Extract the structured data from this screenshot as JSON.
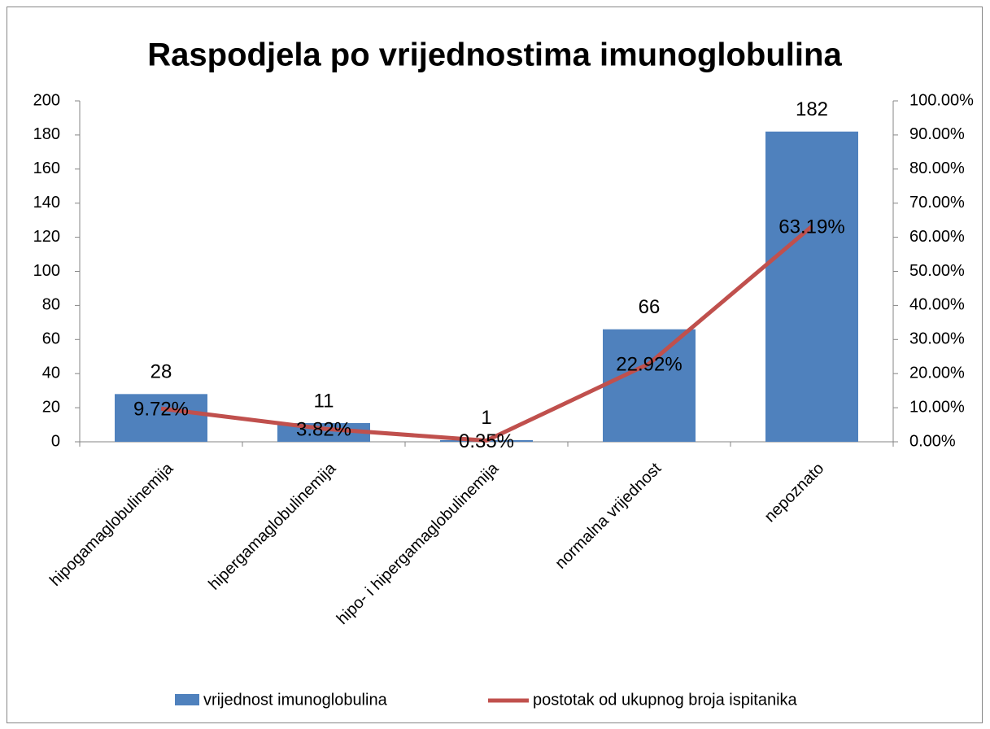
{
  "chart_data": {
    "type": "combo",
    "title": "Raspodjela po vrijednostima imunoglobulina",
    "categories": [
      "hipogamaglobulinemija",
      "hipergamaglobulinemija",
      "hipo- i hipergamaglobulinemija",
      "normalna vrijednost",
      "nepoznato"
    ],
    "series": [
      {
        "name": "vrijednost imunoglobulina",
        "type": "bar",
        "color": "#4f81bd",
        "values": [
          28,
          11,
          1,
          66,
          182
        ]
      },
      {
        "name": "postotak od ukupnog broja ispitanika",
        "type": "line",
        "axis": "y2",
        "color": "#c0504d",
        "values": [
          9.72,
          3.82,
          0.35,
          22.92,
          63.19
        ],
        "value_labels": [
          "9.72%",
          "3.82%",
          "0.35%",
          "22.92%",
          "63.19%"
        ]
      }
    ],
    "ylim": [
      0,
      200
    ],
    "yticks": [
      0,
      20,
      40,
      60,
      80,
      100,
      120,
      140,
      160,
      180,
      200
    ],
    "y2lim": [
      0,
      100
    ],
    "y2ticks": [
      {
        "value": 0,
        "label": "0.00%"
      },
      {
        "value": 10,
        "label": "10.00%"
      },
      {
        "value": 20,
        "label": "20.00%"
      },
      {
        "value": 30,
        "label": "30.00%"
      },
      {
        "value": 40,
        "label": "40.00%"
      },
      {
        "value": 50,
        "label": "50.00%"
      },
      {
        "value": 60,
        "label": "60.00%"
      },
      {
        "value": 70,
        "label": "70.00%"
      },
      {
        "value": 80,
        "label": "80.00%"
      },
      {
        "value": 90,
        "label": "90.00%"
      },
      {
        "value": 100,
        "label": "100.00%"
      }
    ],
    "grid": false,
    "legend": "bottom"
  }
}
